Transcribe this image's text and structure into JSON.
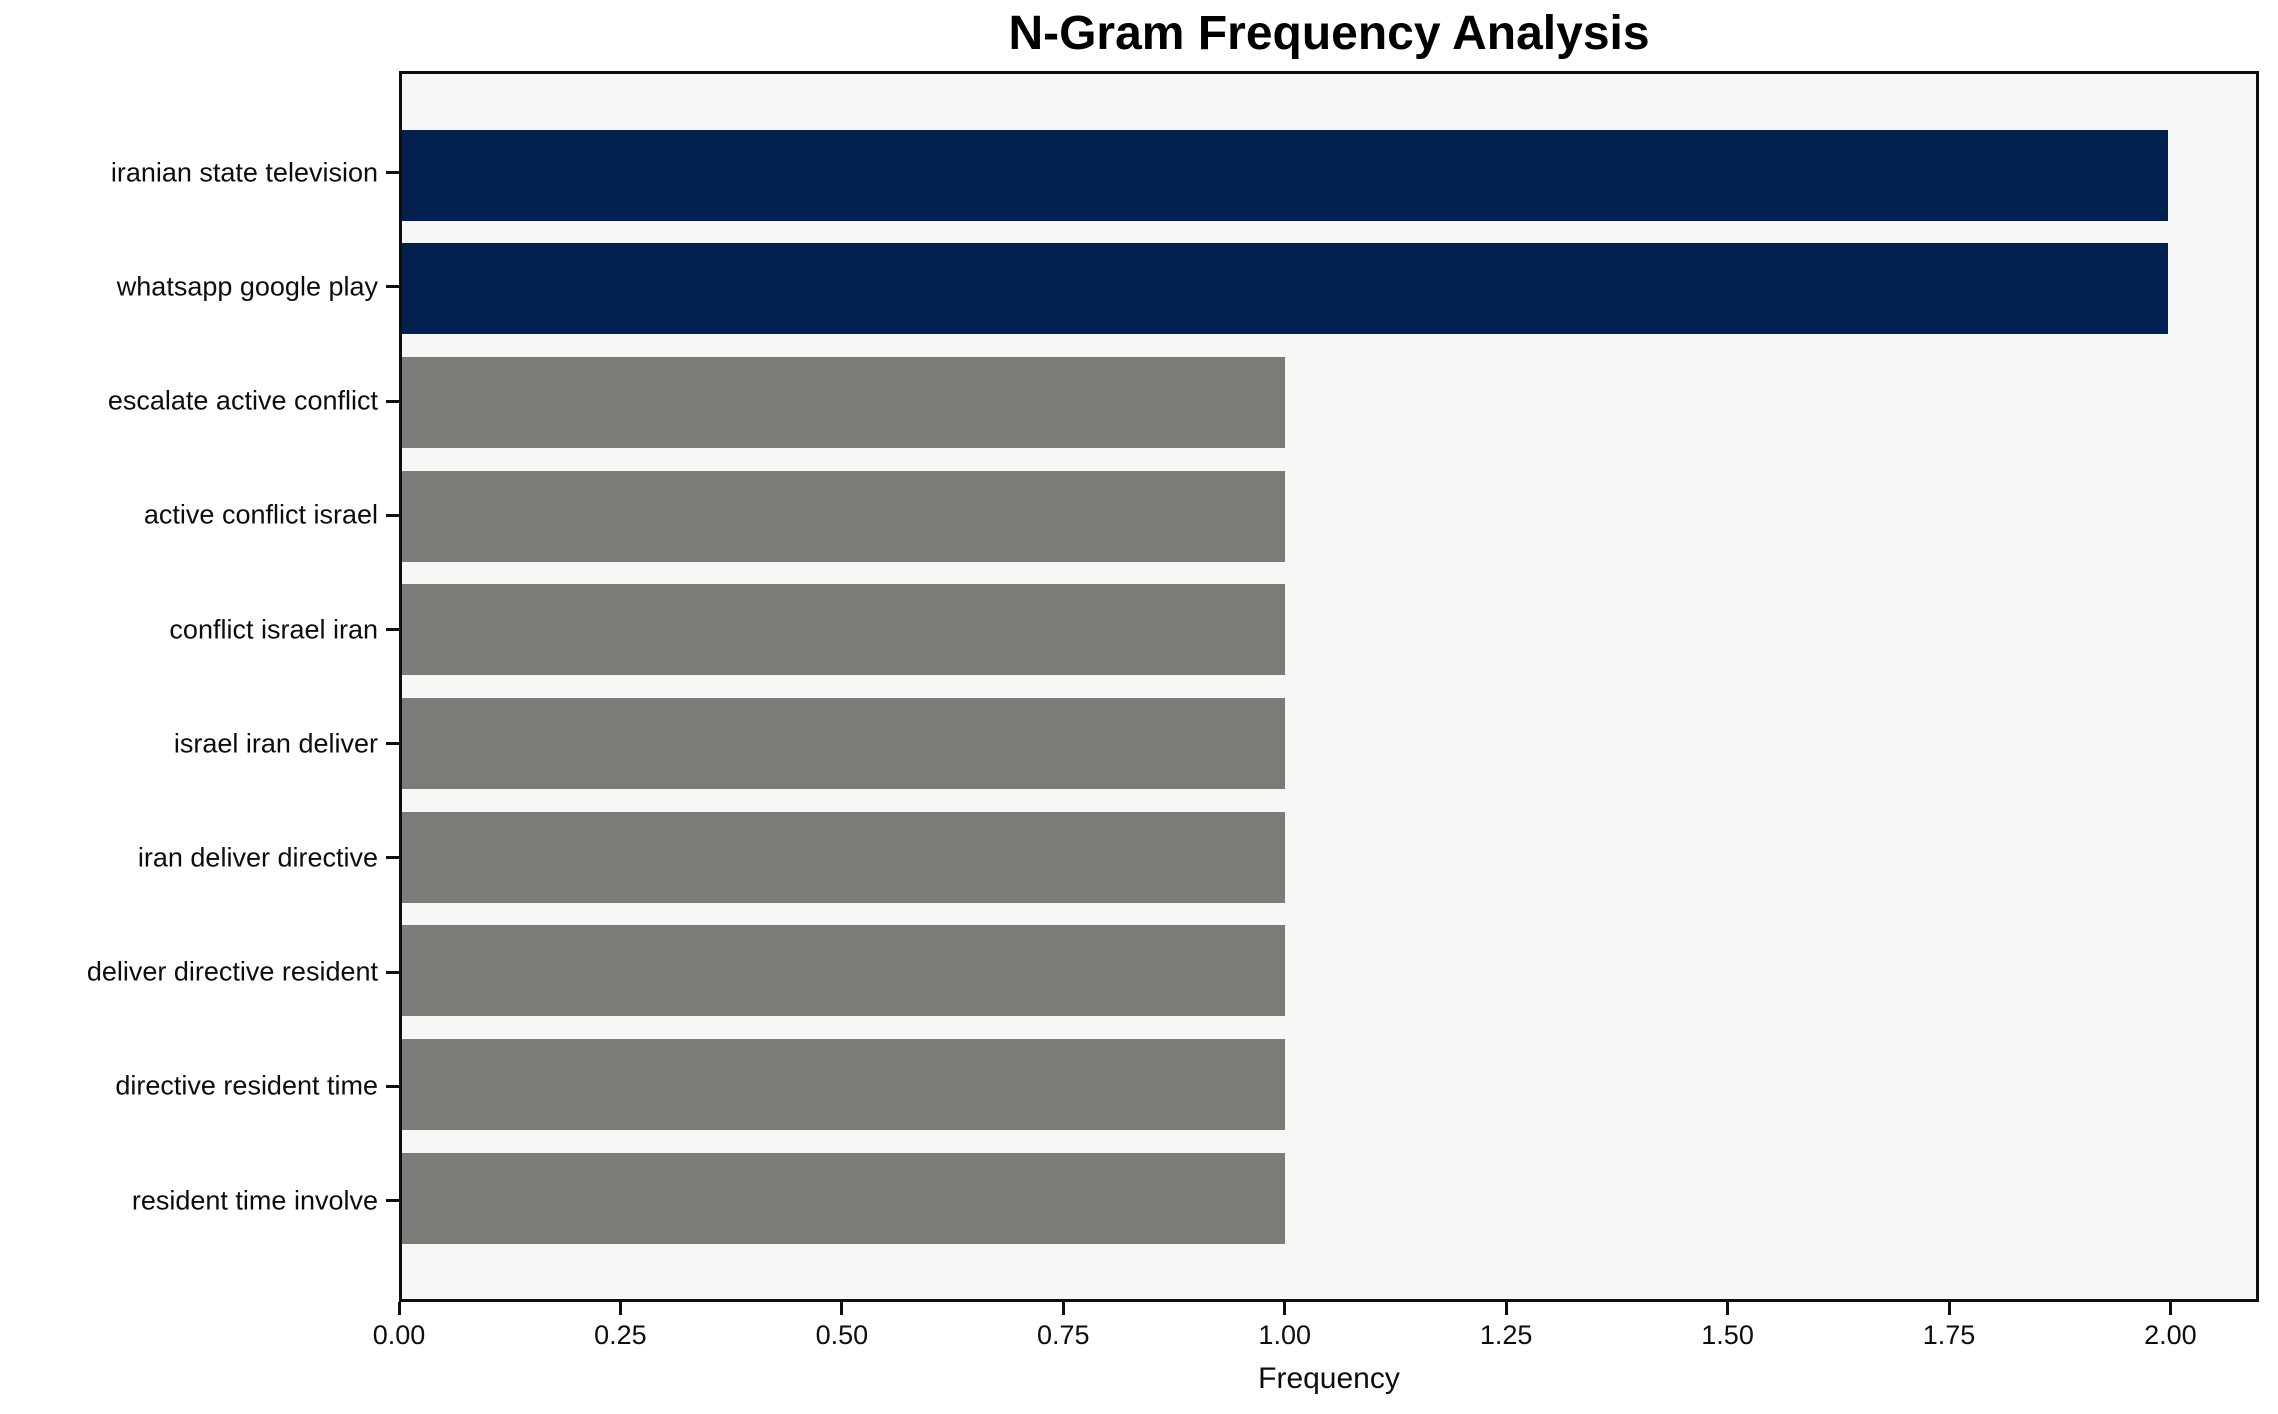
{
  "chart_data": {
    "type": "bar",
    "orientation": "horizontal",
    "title": "N-Gram Frequency Analysis",
    "xlabel": "Frequency",
    "ylabel": "",
    "categories": [
      "iranian state television",
      "whatsapp google play",
      "escalate active conflict",
      "active conflict israel",
      "conflict israel iran",
      "israel iran deliver",
      "iran deliver directive",
      "deliver directive resident",
      "directive resident time",
      "resident time involve"
    ],
    "values": [
      2,
      2,
      1,
      1,
      1,
      1,
      1,
      1,
      1,
      1
    ],
    "bar_colors": [
      "#032150",
      "#032150",
      "#7b7b78",
      "#7b7b78",
      "#7b7b78",
      "#7b7b78",
      "#7b7b78",
      "#7b7b78",
      "#7b7b78",
      "#7b7b78"
    ],
    "xlim": [
      0,
      2.1
    ],
    "xticks": [
      0,
      0.25,
      0.5,
      0.75,
      1.0,
      1.25,
      1.5,
      1.75,
      2.0
    ],
    "xtick_labels": [
      "0.00",
      "0.25",
      "0.50",
      "0.75",
      "1.00",
      "1.25",
      "1.50",
      "1.75",
      "2.00"
    ],
    "grid": false,
    "legend": null,
    "colors": {
      "high_frequency_bar": "#032150",
      "low_frequency_bar": "#7b7b78",
      "plot_background": "#f7f7f6",
      "spine": "#0f0f0f",
      "text": "#0d0d0d"
    }
  }
}
